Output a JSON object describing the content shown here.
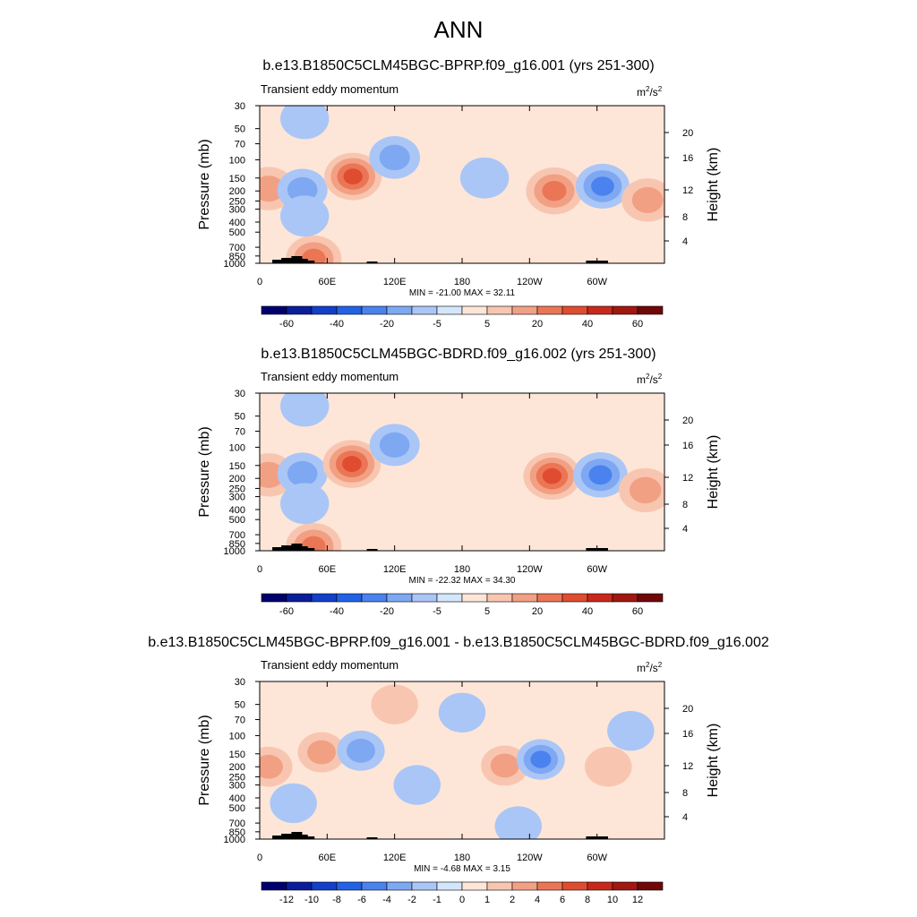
{
  "title": "ANN",
  "colors": {
    "diverging": [
      "#00006e",
      "#0a1e9a",
      "#1240c8",
      "#2262e6",
      "#4a82ee",
      "#7ea8f2",
      "#aac6f6",
      "#d4e6fa",
      "#fde6d8",
      "#f8c6b0",
      "#f2a084",
      "#ea7656",
      "#e04c30",
      "#c8281c",
      "#a01810",
      "#700808"
    ]
  },
  "panels": [
    {
      "title": "b.e13.B1850C5CLM45BGC-BPRP.f09_g16.001 (yrs 251-300)",
      "left_label": "Transient eddy momentum",
      "units_base": "m",
      "units_exp1": "2",
      "units_mid": "/s",
      "units_exp2": "2",
      "minmax": "MIN = -21.00  MAX =  32.11",
      "colorbar_labels": [
        "-60",
        "-40",
        "-20",
        "-5",
        "5",
        "20",
        "40",
        "60"
      ]
    },
    {
      "title": "b.e13.B1850C5CLM45BGC-BDRD.f09_g16.002 (yrs 251-300)",
      "left_label": "Transient eddy momentum",
      "units_base": "m",
      "units_exp1": "2",
      "units_mid": "/s",
      "units_exp2": "2",
      "minmax": "MIN = -22.32  MAX =  34.30",
      "colorbar_labels": [
        "-60",
        "-40",
        "-20",
        "-5",
        "5",
        "20",
        "40",
        "60"
      ]
    },
    {
      "title": "b.e13.B1850C5CLM45BGC-BPRP.f09_g16.001 - b.e13.B1850C5CLM45BGC-BDRD.f09_g16.002",
      "left_label": "Transient eddy momentum",
      "units_base": "m",
      "units_exp1": "2",
      "units_mid": "/s",
      "units_exp2": "2",
      "minmax": "MIN = -4.68  MAX =  3.15",
      "colorbar_labels": [
        "-12",
        "-10",
        "-8",
        "-6",
        "-4",
        "-2",
        "-1",
        "0",
        "1",
        "2",
        "4",
        "6",
        "8",
        "10",
        "12"
      ]
    }
  ],
  "chart_data": [
    {
      "type": "heatmap",
      "title": "b.e13.B1850C5CLM45BGC-BPRP.f09_g16.001 (yrs 251-300)",
      "xlabel": "",
      "ylabel": "Pressure (mb)",
      "y2label": "Height (km)",
      "x_ticks": [
        "0",
        "60E",
        "120E",
        "180",
        "120W",
        "60W"
      ],
      "x_tick_values": [
        0,
        60,
        120,
        180,
        240,
        300
      ],
      "xlim": [
        0,
        360
      ],
      "y_ticks": [
        "30",
        "50",
        "70",
        "100",
        "150",
        "200",
        "250",
        "300",
        "400",
        "500",
        "700",
        "850",
        "1000"
      ],
      "y_tick_values": [
        30,
        50,
        70,
        100,
        150,
        200,
        250,
        300,
        400,
        500,
        700,
        850,
        1000
      ],
      "ylim": [
        30,
        1000
      ],
      "y2_ticks": [
        "20",
        "16",
        "12",
        "8",
        "4"
      ],
      "y2_tick_values": [
        20,
        16,
        12,
        8,
        4
      ],
      "min": -21.0,
      "max": 32.11,
      "contour_levels": [
        -70,
        -60,
        -50,
        -40,
        -30,
        -20,
        -10,
        -5,
        0,
        5,
        10,
        20,
        30,
        40,
        50,
        60,
        70
      ],
      "features": [
        {
          "lon": 8,
          "p": 190,
          "value": 15
        },
        {
          "lon": 38,
          "p": 195,
          "value": -10
        },
        {
          "lon": 83,
          "p": 145,
          "value": 30
        },
        {
          "lon": 120,
          "p": 95,
          "value": -12
        },
        {
          "lon": 200,
          "p": 150,
          "value": -6
        },
        {
          "lon": 262,
          "p": 200,
          "value": 28
        },
        {
          "lon": 305,
          "p": 180,
          "value": -20
        },
        {
          "lon": 345,
          "p": 245,
          "value": 15
        },
        {
          "lon": 48,
          "p": 900,
          "value": 25
        },
        {
          "lon": 40,
          "p": 40,
          "value": -6
        },
        {
          "lon": 40,
          "p": 350,
          "value": -6
        },
        {
          "lon": 160,
          "p": 250,
          "value": -4
        }
      ]
    },
    {
      "type": "heatmap",
      "title": "b.e13.B1850C5CLM45BGC-BDRD.f09_g16.002 (yrs 251-300)",
      "xlabel": "",
      "ylabel": "Pressure (mb)",
      "y2label": "Height (km)",
      "x_ticks": [
        "0",
        "60E",
        "120E",
        "180",
        "120W",
        "60W"
      ],
      "x_tick_values": [
        0,
        60,
        120,
        180,
        240,
        300
      ],
      "xlim": [
        0,
        360
      ],
      "y_ticks": [
        "30",
        "50",
        "70",
        "100",
        "150",
        "200",
        "250",
        "300",
        "400",
        "500",
        "700",
        "850",
        "1000"
      ],
      "y_tick_values": [
        30,
        50,
        70,
        100,
        150,
        200,
        250,
        300,
        400,
        500,
        700,
        850,
        1000
      ],
      "ylim": [
        30,
        1000
      ],
      "y2_ticks": [
        "20",
        "16",
        "12",
        "8",
        "4"
      ],
      "y2_tick_values": [
        20,
        16,
        12,
        8,
        4
      ],
      "min": -22.32,
      "max": 34.3,
      "contour_levels": [
        -70,
        -60,
        -50,
        -40,
        -30,
        -20,
        -10,
        -5,
        0,
        5,
        10,
        20,
        30,
        40,
        50,
        60,
        70
      ],
      "features": [
        {
          "lon": 8,
          "p": 185,
          "value": 15
        },
        {
          "lon": 38,
          "p": 180,
          "value": -10
        },
        {
          "lon": 82,
          "p": 145,
          "value": 32
        },
        {
          "lon": 120,
          "p": 95,
          "value": -10
        },
        {
          "lon": 260,
          "p": 190,
          "value": 30
        },
        {
          "lon": 303,
          "p": 185,
          "value": -22
        },
        {
          "lon": 343,
          "p": 260,
          "value": 18
        },
        {
          "lon": 48,
          "p": 900,
          "value": 25
        },
        {
          "lon": 40,
          "p": 40,
          "value": -6
        },
        {
          "lon": 40,
          "p": 350,
          "value": -6
        },
        {
          "lon": 160,
          "p": 200,
          "value": -4
        }
      ]
    },
    {
      "type": "heatmap",
      "title": "b.e13.B1850C5CLM45BGC-BPRP.f09_g16.001 - b.e13.B1850C5CLM45BGC-BDRD.f09_g16.002",
      "xlabel": "",
      "ylabel": "Pressure (mb)",
      "y2label": "Height (km)",
      "x_ticks": [
        "0",
        "60E",
        "120E",
        "180",
        "120W",
        "60W"
      ],
      "x_tick_values": [
        0,
        60,
        120,
        180,
        240,
        300
      ],
      "xlim": [
        0,
        360
      ],
      "y_ticks": [
        "30",
        "50",
        "70",
        "100",
        "150",
        "200",
        "250",
        "300",
        "400",
        "500",
        "700",
        "850",
        "1000"
      ],
      "y_tick_values": [
        30,
        50,
        70,
        100,
        150,
        200,
        250,
        300,
        400,
        500,
        700,
        850,
        1000
      ],
      "ylim": [
        30,
        1000
      ],
      "y2_ticks": [
        "20",
        "16",
        "12",
        "8",
        "4"
      ],
      "y2_tick_values": [
        20,
        16,
        12,
        8,
        4
      ],
      "min": -4.68,
      "max": 3.15,
      "contour_levels": [
        -14,
        -12,
        -10,
        -8,
        -6,
        -4,
        -2,
        -1,
        0,
        1,
        2,
        4,
        6,
        8,
        10,
        12,
        14
      ],
      "features": [
        {
          "lon": 8,
          "p": 200,
          "value": 2.5
        },
        {
          "lon": 55,
          "p": 145,
          "value": 3.0
        },
        {
          "lon": 90,
          "p": 140,
          "value": -3.0
        },
        {
          "lon": 218,
          "p": 195,
          "value": 3.0
        },
        {
          "lon": 250,
          "p": 170,
          "value": -4.5
        },
        {
          "lon": 310,
          "p": 200,
          "value": 1.5
        },
        {
          "lon": 30,
          "p": 450,
          "value": -1.2
        },
        {
          "lon": 140,
          "p": 300,
          "value": -1.2
        },
        {
          "lon": 180,
          "p": 60,
          "value": -1.2
        },
        {
          "lon": 120,
          "p": 50,
          "value": 1.2
        },
        {
          "lon": 330,
          "p": 90,
          "value": -1.2
        },
        {
          "lon": 230,
          "p": 750,
          "value": -1.2
        }
      ]
    }
  ]
}
